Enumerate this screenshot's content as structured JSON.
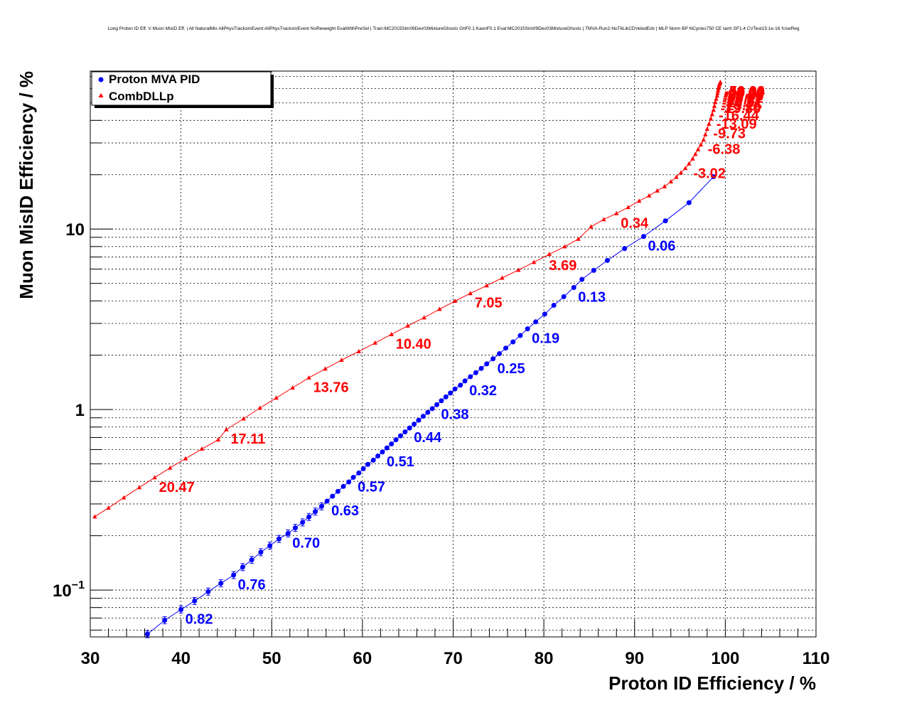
{
  "chart_data": {
    "type": "scatter",
    "title": "Long Proton ID Eff. V Muon MisID Eff. | All NaturalMix AllPhysTracksInEvent:AllPhysTracksInEvent NoReweight EvalWithPreSel | Train:MC2015Sim09Dev03MixtureGhosts GhF0.1 KaonF0.1 Eval:MC2015Sim09Dev03MixtureGhosts | TMVA-Run2-NoTkLikCDVelodEdx | MLP Norm BP NCycles750 CE tanh SF1.4 CVTest15:1e-16 !UseReg",
    "xlabel": "Proton ID Efficiency / %",
    "ylabel": "Muon MisID Efficiency / %",
    "xlim": [
      30,
      110
    ],
    "ylim": [
      0.055,
      75
    ],
    "yscale": "log",
    "grid": true,
    "legend_position": "top-left",
    "x_ticks": [
      "30",
      "40",
      "50",
      "60",
      "70",
      "80",
      "90",
      "100",
      "110"
    ],
    "y_ticks": [
      {
        "value": 0.1,
        "base": "10",
        "exp": "−1"
      },
      {
        "value": 1,
        "label": "1"
      },
      {
        "value": 10,
        "label": "10"
      }
    ],
    "series": [
      {
        "name": "Proton MVA PID",
        "color": "#0000ff",
        "marker": "circle",
        "x": [
          36.3,
          38.2,
          40.0,
          41.5,
          43.0,
          44.4,
          45.8,
          46.8,
          47.8,
          48.8,
          49.8,
          50.8,
          51.8,
          52.6,
          53.4,
          54.1,
          54.8,
          55.5,
          56.1,
          56.7,
          57.3,
          57.9,
          58.5,
          59.0,
          59.6,
          60.1,
          60.6,
          61.2,
          61.7,
          62.2,
          62.7,
          63.2,
          63.7,
          64.2,
          64.7,
          65.2,
          65.7,
          66.2,
          66.7,
          67.2,
          67.7,
          68.2,
          68.7,
          69.2,
          69.7,
          70.2,
          70.8,
          71.3,
          71.9,
          72.5,
          73.1,
          73.7,
          74.4,
          75.1,
          75.8,
          76.6,
          77.4,
          78.2,
          79.1,
          80.1,
          81.1,
          82.2,
          83.3,
          84.2,
          85.5,
          87.0,
          88.9,
          91.0,
          93.4,
          96.0,
          98.7
        ],
        "y": [
          0.057,
          0.068,
          0.078,
          0.087,
          0.098,
          0.109,
          0.121,
          0.134,
          0.147,
          0.162,
          0.176,
          0.192,
          0.206,
          0.221,
          0.237,
          0.254,
          0.272,
          0.291,
          0.311,
          0.331,
          0.352,
          0.375,
          0.397,
          0.421,
          0.445,
          0.47,
          0.497,
          0.524,
          0.553,
          0.582,
          0.613,
          0.645,
          0.68,
          0.715,
          0.752,
          0.79,
          0.83,
          0.873,
          0.918,
          0.964,
          1.012,
          1.064,
          1.119,
          1.175,
          1.235,
          1.3,
          1.365,
          1.44,
          1.52,
          1.6,
          1.69,
          1.79,
          1.91,
          2.04,
          2.19,
          2.37,
          2.57,
          2.8,
          3.06,
          3.38,
          3.78,
          4.22,
          4.74,
          5.26,
          5.9,
          6.7,
          7.8,
          9.1,
          11.1,
          14.0,
          19.5
        ],
        "annotations": [
          {
            "x": 40.0,
            "y": 0.078,
            "text": "0.82"
          },
          {
            "x": 45.8,
            "y": 0.121,
            "text": "0.76"
          },
          {
            "x": 51.8,
            "y": 0.206,
            "text": "0.70"
          },
          {
            "x": 56.1,
            "y": 0.311,
            "text": "0.63"
          },
          {
            "x": 59.0,
            "y": 0.421,
            "text": "0.57"
          },
          {
            "x": 62.2,
            "y": 0.582,
            "text": "0.51"
          },
          {
            "x": 65.2,
            "y": 0.79,
            "text": "0.44"
          },
          {
            "x": 68.2,
            "y": 1.064,
            "text": "0.38"
          },
          {
            "x": 71.3,
            "y": 1.44,
            "text": "0.32"
          },
          {
            "x": 74.4,
            "y": 1.91,
            "text": "0.25"
          },
          {
            "x": 78.2,
            "y": 2.8,
            "text": "0.19"
          },
          {
            "x": 83.3,
            "y": 4.74,
            "text": "0.13"
          },
          {
            "x": 91.0,
            "y": 9.1,
            "text": "0.06"
          }
        ]
      },
      {
        "name": "CombDLLp",
        "color": "#ff0000",
        "marker": "triangle",
        "x": [
          30.5,
          32.0,
          33.7,
          35.4,
          37.1,
          38.8,
          40.5,
          42.3,
          44.1,
          45.0,
          46.9,
          48.7,
          50.5,
          52.3,
          54.1,
          55.9,
          57.7,
          59.6,
          61.4,
          63.2,
          65.0,
          66.8,
          68.5,
          70.2,
          71.9,
          73.7,
          75.4,
          77.2,
          78.9,
          80.6,
          82.3,
          83.8,
          85.2,
          86.6,
          88.0,
          89.3,
          90.5,
          91.6,
          92.5,
          93.3,
          94.0,
          94.6,
          95.1,
          95.6,
          96.0,
          96.4,
          96.7,
          97.0,
          97.3,
          97.6,
          97.8,
          98.0,
          98.2,
          98.4,
          98.55,
          98.7,
          98.8,
          98.9,
          99.0,
          99.1,
          99.15,
          99.2,
          99.25,
          99.3,
          99.35,
          99.4,
          99.45
        ],
        "y": [
          0.255,
          0.285,
          0.325,
          0.37,
          0.42,
          0.475,
          0.535,
          0.605,
          0.68,
          0.775,
          0.89,
          1.02,
          1.16,
          1.32,
          1.5,
          1.68,
          1.88,
          2.1,
          2.34,
          2.61,
          2.91,
          3.23,
          3.6,
          3.99,
          4.4,
          4.86,
          5.36,
          5.93,
          6.55,
          7.25,
          8.0,
          8.8,
          10.3,
          11.3,
          12.2,
          13.2,
          14.3,
          15.3,
          16.3,
          17.2,
          18.3,
          19.4,
          20.5,
          21.7,
          23.0,
          24.5,
          26.0,
          27.6,
          29.3,
          31.2,
          33.4,
          35.8,
          38.2,
          40.8,
          43.2,
          45.6,
          48.0,
          50.4,
          52.6,
          54.7,
          56.6,
          58.4,
          60.1,
          61.7,
          63.1,
          64.3,
          65.2
        ],
        "annotations": [
          {
            "x": 37.1,
            "y": 0.42,
            "text": "20.47"
          },
          {
            "x": 45.0,
            "y": 0.775,
            "text": "17.11"
          },
          {
            "x": 54.1,
            "y": 1.5,
            "text": "13.76"
          },
          {
            "x": 63.2,
            "y": 2.61,
            "text": "10.40"
          },
          {
            "x": 71.9,
            "y": 4.4,
            "text": "7.05"
          },
          {
            "x": 80.1,
            "y": 7.1,
            "text": "3.69"
          },
          {
            "x": 88.0,
            "y": 12.2,
            "text": "0.34"
          },
          {
            "x": 96.0,
            "y": 23.0,
            "text": "-3.02"
          },
          {
            "x": 97.6,
            "y": 31.2,
            "text": "-6.38"
          },
          {
            "x": 98.2,
            "y": 38.2,
            "text": "-9.73"
          },
          {
            "x": 98.55,
            "y": 43.2,
            "text": "-13.09"
          },
          {
            "x": 98.8,
            "y": 48.0,
            "text": "-16.44"
          },
          {
            "x": 99.0,
            "y": 52.6,
            "text": "-19.80"
          },
          {
            "x": 99.1,
            "y": 54.7,
            "text": "-23.16"
          },
          {
            "x": 99.15,
            "y": 56.6,
            "text": "-26.51"
          },
          {
            "x": 99.2,
            "y": 58.4,
            "text": "-29.87"
          },
          {
            "x": 99.25,
            "y": 60.1,
            "text": "-33.22"
          },
          {
            "x": 99.3,
            "y": 61.7,
            "text": "-36.58"
          },
          {
            "x": 99.35,
            "y": 63.1,
            "text": "-39.93"
          },
          {
            "x": 99.4,
            "y": 64.3,
            "text": "-43.29"
          },
          {
            "x": 99.45,
            "y": 65.2,
            "text": "-46.64"
          },
          {
            "x": 99.45,
            "y": 65.6,
            "text": "-50.00"
          }
        ]
      }
    ]
  }
}
